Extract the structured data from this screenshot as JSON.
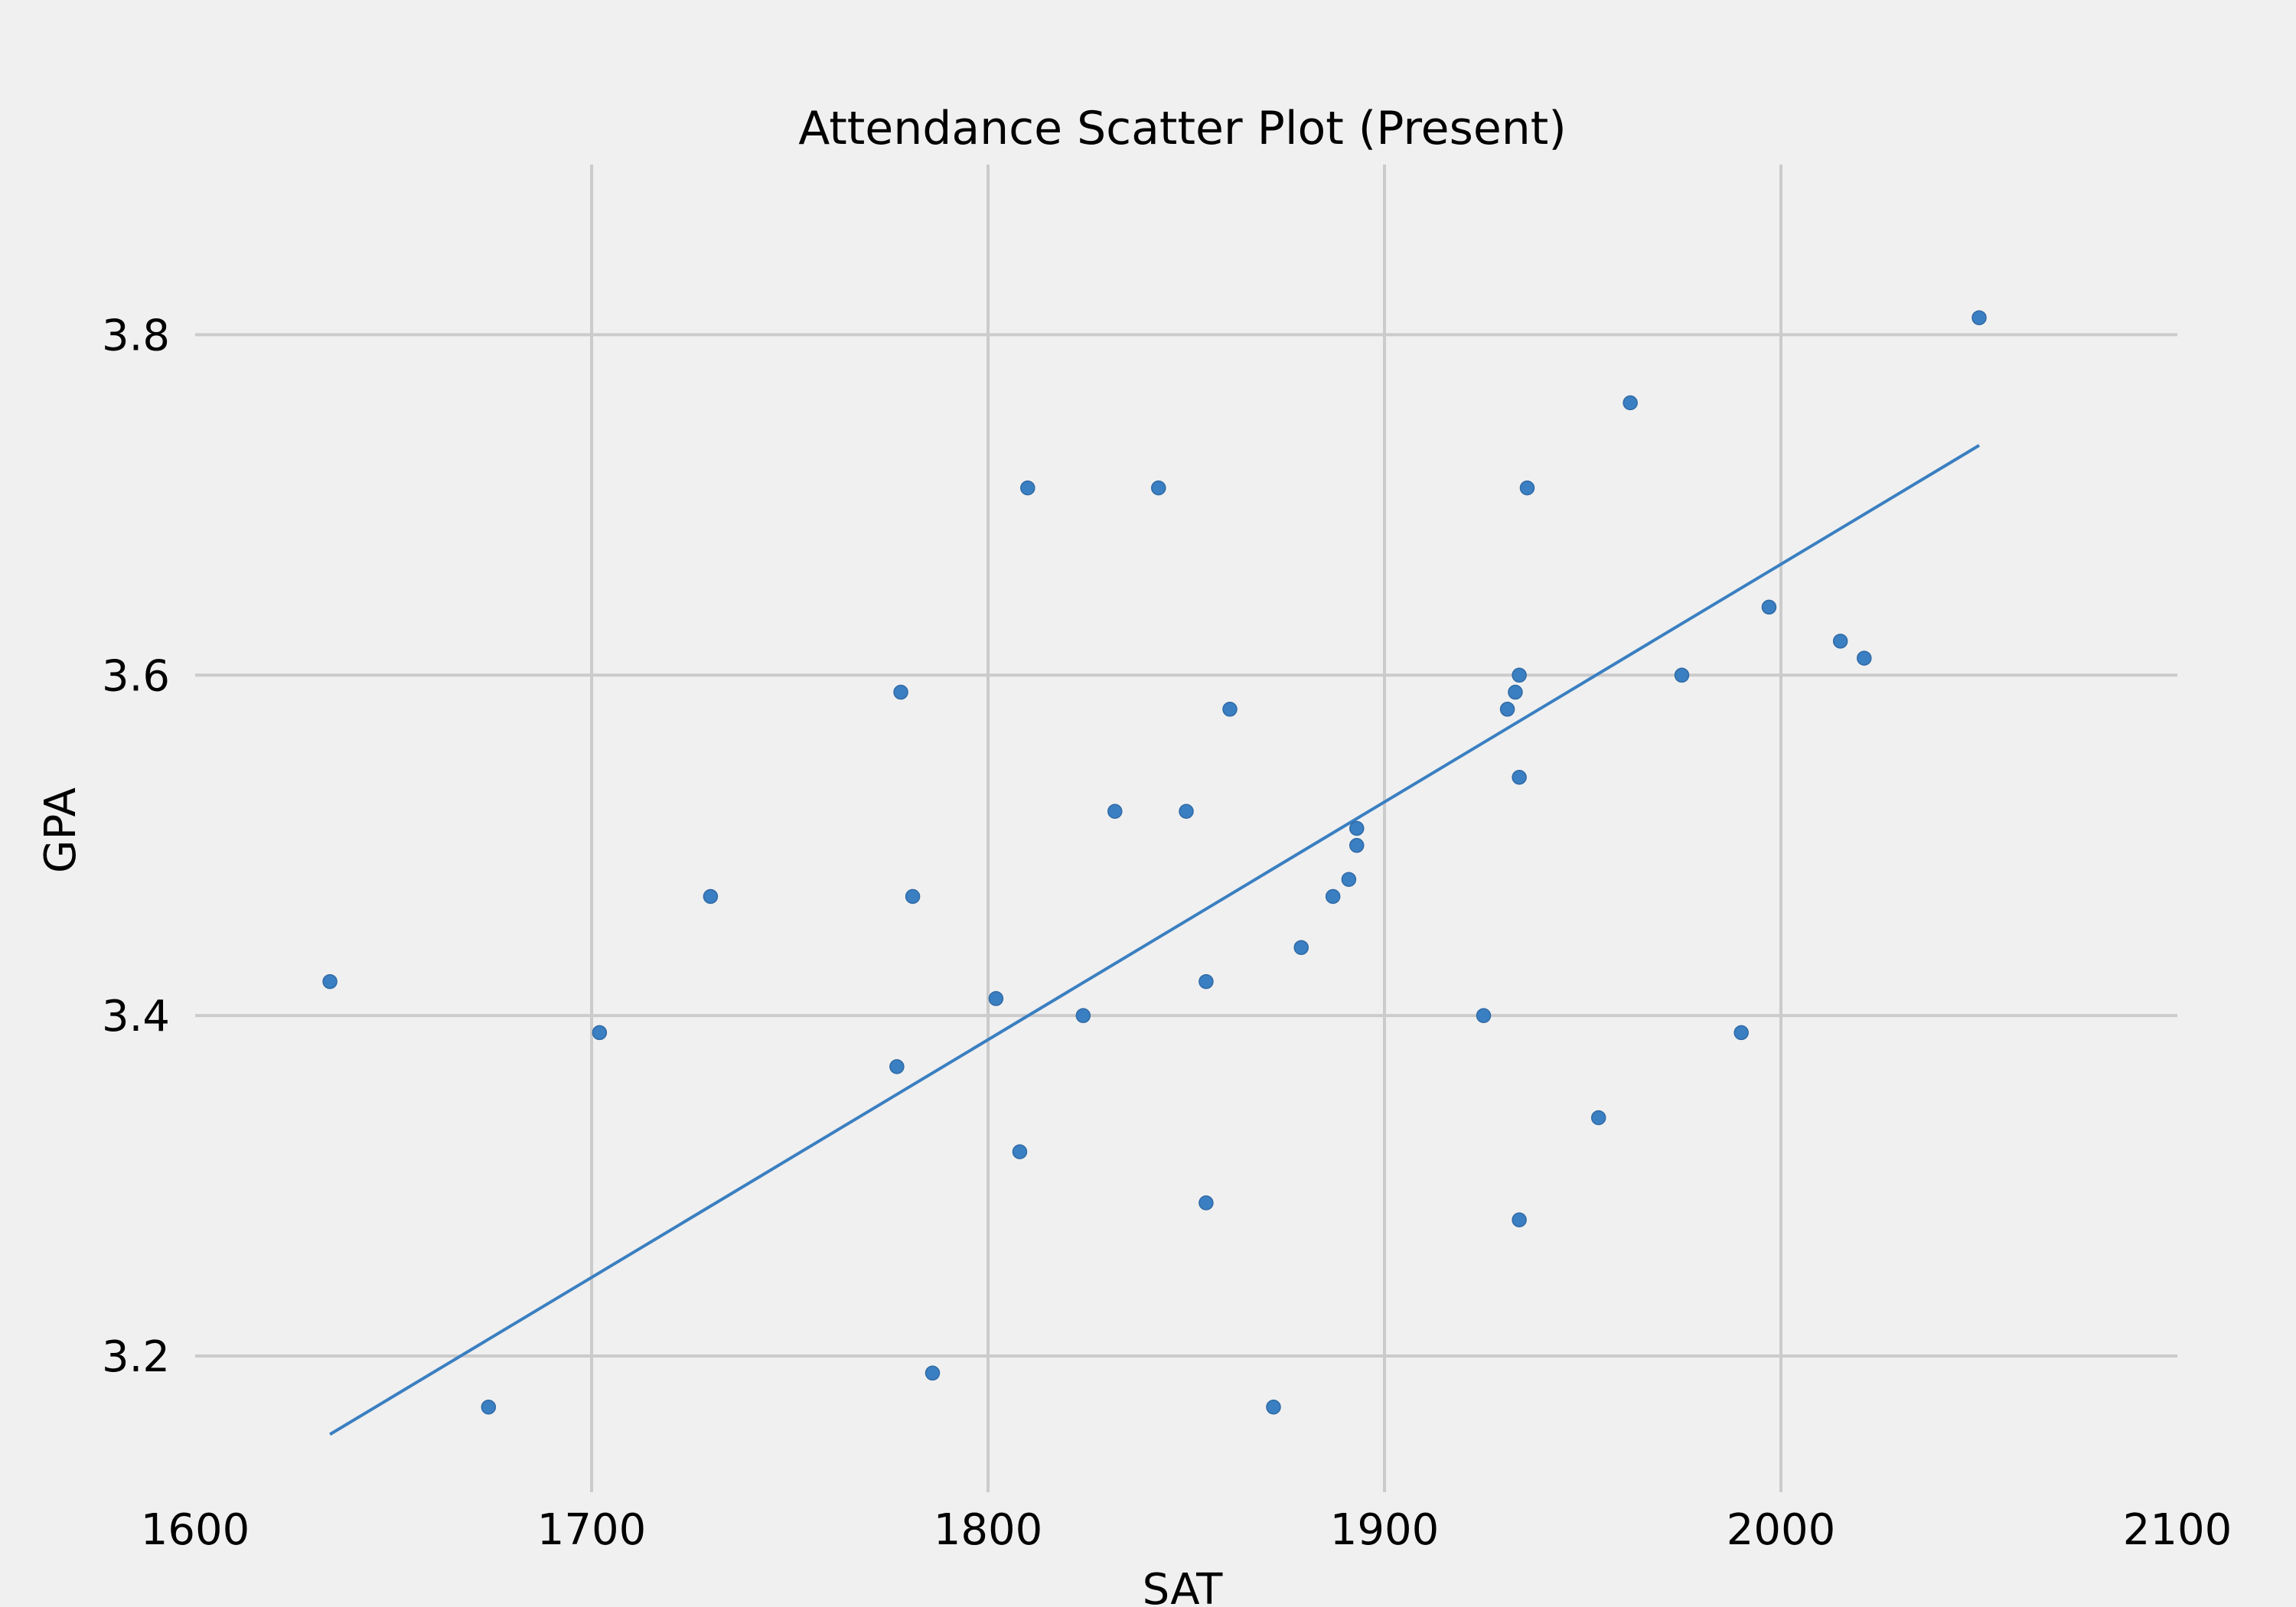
{
  "chart_data": {
    "type": "scatter",
    "title": "Attendance Scatter Plot (Present)",
    "xlabel": "SAT",
    "ylabel": "GPA",
    "xlim": [
      1600,
      2100
    ],
    "ylim": [
      3.12,
      3.9
    ],
    "x_ticks": [
      1600,
      1700,
      1800,
      1900,
      2000,
      2100
    ],
    "y_ticks": [
      3.2,
      3.4,
      3.6,
      3.8
    ],
    "y_tick_labels": [
      "3.2",
      "3.4",
      "3.6",
      "3.8"
    ],
    "grid": true,
    "point_color": "#3a7fc1",
    "line_color": "#3a7fc1",
    "background_color": "#f0f0f0",
    "grid_color": "#cbcbcb",
    "series": [
      {
        "points": [
          {
            "x": 1634,
            "y": 3.42
          },
          {
            "x": 1674,
            "y": 3.17
          },
          {
            "x": 1702,
            "y": 3.39
          },
          {
            "x": 1730,
            "y": 3.47
          },
          {
            "x": 1777,
            "y": 3.37
          },
          {
            "x": 1778,
            "y": 3.59
          },
          {
            "x": 1781,
            "y": 3.47
          },
          {
            "x": 1786,
            "y": 3.19
          },
          {
            "x": 1802,
            "y": 3.41
          },
          {
            "x": 1808,
            "y": 3.32
          },
          {
            "x": 1810,
            "y": 3.71
          },
          {
            "x": 1824,
            "y": 3.4
          },
          {
            "x": 1832,
            "y": 3.52
          },
          {
            "x": 1843,
            "y": 3.71
          },
          {
            "x": 1850,
            "y": 3.52
          },
          {
            "x": 1855,
            "y": 3.42
          },
          {
            "x": 1855,
            "y": 3.29
          },
          {
            "x": 1861,
            "y": 3.58
          },
          {
            "x": 1872,
            "y": 3.17
          },
          {
            "x": 1879,
            "y": 3.44
          },
          {
            "x": 1887,
            "y": 3.47
          },
          {
            "x": 1891,
            "y": 3.48
          },
          {
            "x": 1893,
            "y": 3.5
          },
          {
            "x": 1893,
            "y": 3.51
          },
          {
            "x": 1925,
            "y": 3.4
          },
          {
            "x": 1931,
            "y": 3.58
          },
          {
            "x": 1933,
            "y": 3.59
          },
          {
            "x": 1934,
            "y": 3.6
          },
          {
            "x": 1934,
            "y": 3.54
          },
          {
            "x": 1934,
            "y": 3.28
          },
          {
            "x": 1936,
            "y": 3.71
          },
          {
            "x": 1954,
            "y": 3.34
          },
          {
            "x": 1962,
            "y": 3.76
          },
          {
            "x": 1975,
            "y": 3.6
          },
          {
            "x": 1990,
            "y": 3.39
          },
          {
            "x": 1997,
            "y": 3.64
          },
          {
            "x": 2015,
            "y": 3.62
          },
          {
            "x": 2021,
            "y": 3.61
          },
          {
            "x": 2050,
            "y": 3.81
          }
        ]
      }
    ],
    "trend_line": {
      "x": [
        1634,
        2050
      ],
      "y": [
        3.154,
        3.735
      ]
    }
  }
}
